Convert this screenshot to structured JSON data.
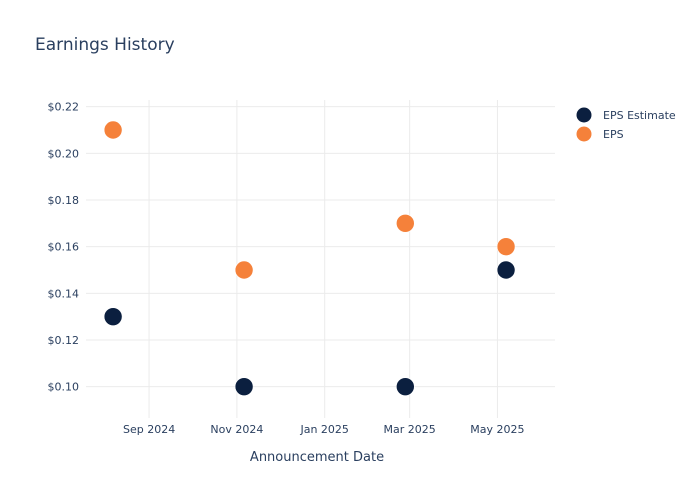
{
  "chart_data": {
    "type": "scatter",
    "title": "Earnings History",
    "xlabel": "Announcement Date",
    "ylabel": "",
    "x_tick_labels": [
      "Sep 2024",
      "Nov 2024",
      "Jan 2025",
      "Mar 2025",
      "May 2025"
    ],
    "y_tick_labels": [
      "$0.10",
      "$0.12",
      "$0.14",
      "$0.16",
      "$0.18",
      "$0.20",
      "$0.22"
    ],
    "ylim": [
      0.09,
      0.225
    ],
    "xlim": [
      "2024-07-15",
      "2025-06-10"
    ],
    "x": [
      "2024-08-07",
      "2024-11-06",
      "2025-02-26",
      "2025-05-07"
    ],
    "series": [
      {
        "name": "EPS Estimate",
        "color": "#0b1f3f",
        "values": [
          0.13,
          0.1,
          0.1,
          0.15
        ]
      },
      {
        "name": "EPS",
        "color": "#f5813a",
        "values": [
          0.21,
          0.15,
          0.17,
          0.16
        ]
      }
    ],
    "grid": true,
    "legend_position": "top-right"
  }
}
